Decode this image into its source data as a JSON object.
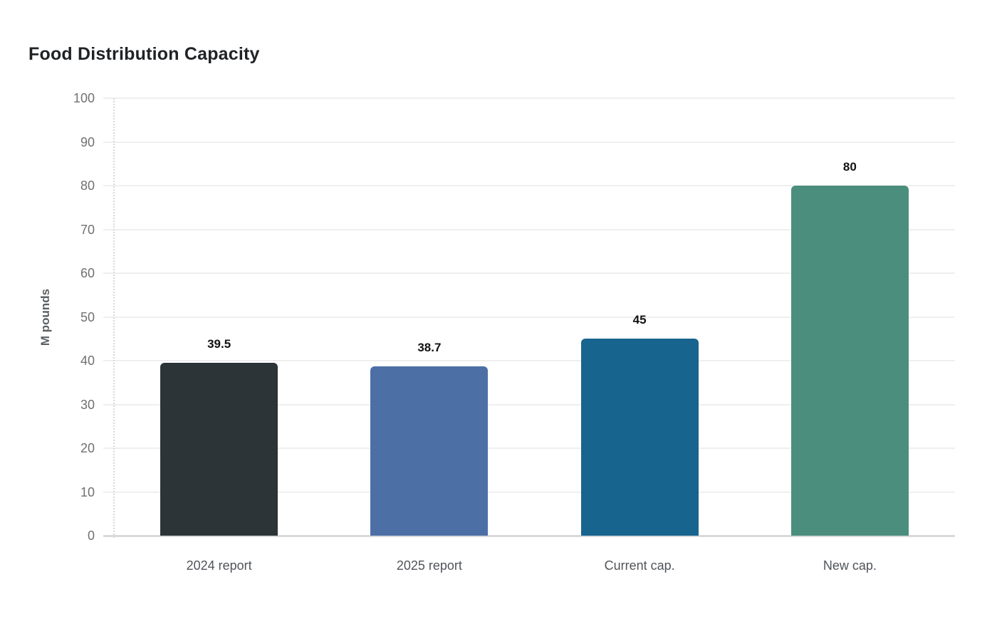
{
  "chart_data": {
    "type": "bar",
    "title": "Food Distribution Capacity",
    "xlabel": "",
    "ylabel": "M pounds",
    "categories": [
      "2024 report",
      "2025 report",
      "Current cap.",
      "New cap."
    ],
    "values": [
      39.5,
      38.7,
      45,
      80
    ],
    "value_labels": [
      "39.5",
      "38.7",
      "45",
      "80"
    ],
    "bar_colors": [
      "#2d3438",
      "#4c70a6",
      "#17648f",
      "#4b8e7d"
    ],
    "ylim": [
      0,
      100
    ],
    "ytick_step": 10,
    "ytick_labels": [
      "0",
      "10",
      "20",
      "30",
      "40",
      "50",
      "60",
      "70",
      "80",
      "90",
      "100"
    ],
    "grid": true,
    "legend_position": "none",
    "colors": {
      "gridline": "#efefef",
      "zero_axis_line": "#d9d9d9",
      "y_axis_dotted_line": "#d8d8d8",
      "y_tick_text": "#707070",
      "x_tick_text": "#50555a",
      "value_label_text": "#121212",
      "axis_name_text": "#5c6064",
      "title_text": "#202326",
      "background": "#ffffff"
    }
  }
}
